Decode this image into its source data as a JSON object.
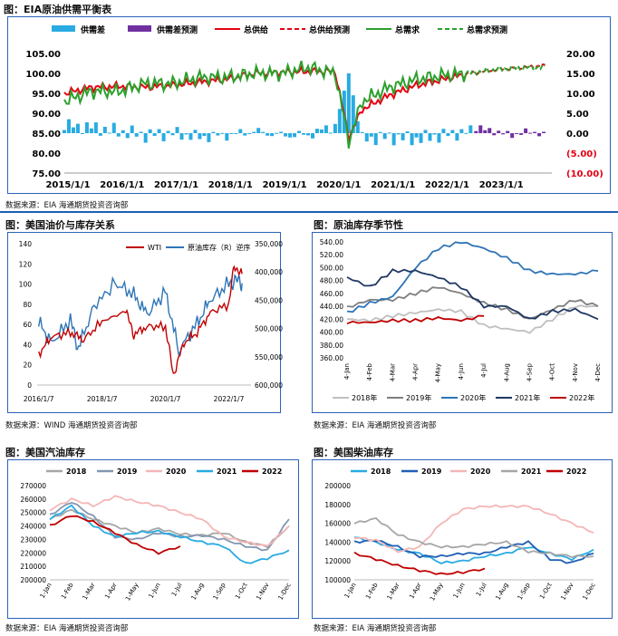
{
  "panel1": {
    "title": "图：EIA原油供需平衡表",
    "source": "数据来源：EIA   海通期货投资咨询部",
    "legend": [
      "供需差",
      "供需差预测",
      "总供给",
      "总供给预测",
      "总需求",
      "总需求预测"
    ],
    "colors": {
      "gap": "#29abe2",
      "gap_forecast": "#7030a0",
      "supply": "#e60012",
      "demand": "#2ca02c"
    },
    "left_axis_ticks": [
      "105.00",
      "100.00",
      "95.00",
      "90.00",
      "85.00",
      "80.00",
      "75.00"
    ],
    "right_axis_ticks": [
      "20.00",
      "15.00",
      "10.00",
      "5.00",
      "0.00",
      "(5.00)",
      "(10.00)"
    ],
    "x_ticks": [
      "2015/1/1",
      "2016/1/1",
      "2017/1/1",
      "2018/1/1",
      "2019/1/1",
      "2020/1/1",
      "2021/1/1",
      "2022/1/1",
      "2023/1/1"
    ]
  },
  "panel2": {
    "title": "图：美国油价与库存关系",
    "source": "数据来源：WIND   海通期货投资咨询部",
    "legend": [
      "WTI",
      "原油库存（R）逆序"
    ],
    "colors": {
      "wti": "#c00000",
      "stock": "#2e75b6"
    },
    "left_ticks": [
      "140",
      "120",
      "100",
      "80",
      "60",
      "40",
      "20",
      "0"
    ],
    "right_ticks": [
      "350,000",
      "400,000",
      "450,000",
      "500,000",
      "550,000",
      "600,000"
    ],
    "x_ticks": [
      "2016/1/7",
      "2018/1/7",
      "2020/1/7",
      "2022/1/7"
    ]
  },
  "panel3": {
    "title": "图：原油库存季节性",
    "source": "数据来源：EIA   海通期货投资咨询部",
    "y_ticks": [
      "540.00",
      "520.00",
      "500.00",
      "480.00",
      "460.00",
      "440.00",
      "420.00",
      "400.00",
      "380.00",
      "360.00"
    ],
    "x_ticks": [
      "4-Jan",
      "4-Feb",
      "4-Mar",
      "4-Apr",
      "4-May",
      "4-Jun",
      "4-Jul",
      "4-Aug",
      "4-Sep",
      "4-Oct",
      "4-Nov",
      "4-Dec"
    ],
    "legend": [
      "2018年",
      "2019年",
      "2020年",
      "2021年",
      "2022年"
    ],
    "colors": [
      "#bfbfbf",
      "#7f7f7f",
      "#2e75b6",
      "#1f3864",
      "#c00000"
    ]
  },
  "panel4": {
    "title": "图：美国汽油库存",
    "source": "数据来源：EIA   海通期货投资咨询部",
    "legend": [
      "2018",
      "2019",
      "2020",
      "2021",
      "2022"
    ],
    "colors": [
      "#a6a6a6",
      "#8497b0",
      "#f4b6b6",
      "#29abe2",
      "#c00000"
    ],
    "y_ticks": [
      "270000",
      "260000",
      "250000",
      "240000",
      "230000",
      "220000",
      "210000",
      "200000"
    ],
    "x_ticks": [
      "1-Jan",
      "1-Feb",
      "1-Mar",
      "1-Apr",
      "1-May",
      "1-Jun",
      "1-Jul",
      "1-Aug",
      "1-Sep",
      "1-Oct",
      "1-Nov",
      "1-Dec"
    ]
  },
  "panel5": {
    "title": "图：美国柴油库存",
    "source": "数据来源：EIA   海通期货投资咨询部",
    "legend": [
      "2018",
      "2019",
      "2020",
      "2021",
      "2022"
    ],
    "colors": [
      "#29abe2",
      "#1f5fb4",
      "#f4b6b6",
      "#a6a6a6",
      "#c00000"
    ],
    "y_ticks": [
      "200000",
      "180000",
      "160000",
      "140000",
      "120000",
      "100000"
    ],
    "x_ticks": [
      "1-Jan",
      "1-Feb",
      "1-Mar",
      "1-Apr",
      "1-May",
      "1-Jun",
      "1-Jul",
      "1-Aug",
      "1-Sep",
      "1-Oct",
      "1-Nov",
      "1-Dec"
    ]
  },
  "chart_data": [
    {
      "type": "line",
      "title": "图：EIA原油供需平衡表",
      "ylim": [
        75,
        105
      ],
      "y2lim": [
        -10,
        20
      ],
      "series": [
        {
          "name": "总供给",
          "x": [
            "2015-01",
            "2015-07",
            "2016-01",
            "2016-07",
            "2017-01",
            "2017-07",
            "2018-01",
            "2018-07",
            "2019-01",
            "2019-07",
            "2020-01",
            "2020-04",
            "2020-07",
            "2021-01",
            "2021-07",
            "2022-01",
            "2022-07"
          ],
          "values": [
            95.0,
            96.5,
            96.8,
            96.5,
            97.0,
            97.8,
            98.5,
            100.0,
            100.3,
            100.5,
            100.5,
            84.0,
            91.0,
            94.5,
            97.0,
            98.5,
            100.0
          ]
        },
        {
          "name": "总供给预测",
          "x": [
            "2022-07",
            "2023-01",
            "2023-07",
            "2023-12"
          ],
          "values": [
            100.0,
            101.0,
            101.5,
            102.0
          ]
        },
        {
          "name": "总需求",
          "x": [
            "2015-01",
            "2015-07",
            "2016-01",
            "2016-07",
            "2017-01",
            "2017-07",
            "2018-01",
            "2018-07",
            "2019-01",
            "2019-07",
            "2020-01",
            "2020-04",
            "2020-07",
            "2021-01",
            "2021-07",
            "2022-01",
            "2022-07"
          ],
          "values": [
            93.0,
            95.5,
            95.5,
            97.5,
            97.5,
            99.0,
            99.0,
            100.0,
            100.0,
            101.5,
            100.0,
            83.0,
            93.0,
            96.5,
            98.5,
            99.5,
            100.0
          ]
        },
        {
          "name": "总需求预测",
          "x": [
            "2022-07",
            "2023-01",
            "2023-07",
            "2023-12"
          ],
          "values": [
            100.0,
            101.0,
            101.5,
            101.5
          ]
        },
        {
          "name": "供需差",
          "axis": "right",
          "x": [
            "2015-01",
            "2015-07",
            "2016-01",
            "2016-07",
            "2017-01",
            "2017-07",
            "2018-01",
            "2018-07",
            "2019-01",
            "2019-07",
            "2020-01",
            "2020-04",
            "2020-07",
            "2021-01",
            "2021-07",
            "2022-01",
            "2022-07"
          ],
          "values": [
            2.0,
            1.5,
            0.5,
            -0.5,
            0.0,
            -1.0,
            -0.5,
            0.5,
            -0.5,
            -0.5,
            2.0,
            15.0,
            -1.5,
            -1.0,
            -1.5,
            -0.5,
            0.5
          ]
        },
        {
          "name": "供需差预测",
          "axis": "right",
          "x": [
            "2022-08",
            "2022-12",
            "2023-04",
            "2023-08",
            "2023-12"
          ],
          "values": [
            1.5,
            0.5,
            -0.5,
            0.5,
            -0.5
          ]
        }
      ]
    },
    {
      "type": "line",
      "title": "图：美国油价与库存关系",
      "ylim": [
        0,
        140
      ],
      "y2lim": [
        600000,
        350000
      ],
      "series": [
        {
          "name": "WTI",
          "x": [
            "2016-01",
            "2016-06",
            "2017-01",
            "2017-06",
            "2018-01",
            "2018-10",
            "2019-01",
            "2019-06",
            "2020-01",
            "2020-04",
            "2020-08",
            "2021-01",
            "2021-06",
            "2022-01",
            "2022-03",
            "2022-06"
          ],
          "values": [
            31,
            48,
            52,
            45,
            63,
            73,
            50,
            58,
            58,
            10,
            42,
            52,
            72,
            80,
            118,
            110
          ]
        },
        {
          "name": "原油库存（R）逆序",
          "axis": "right",
          "x": [
            "2016-01",
            "2016-06",
            "2017-01",
            "2017-04",
            "2017-10",
            "2018-06",
            "2019-01",
            "2019-06",
            "2020-01",
            "2020-06",
            "2021-01",
            "2021-06",
            "2022-01",
            "2022-04",
            "2022-06"
          ],
          "values": [
            490000,
            525000,
            485000,
            535000,
            460000,
            420000,
            440000,
            475000,
            435000,
            540000,
            490000,
            450000,
            420000,
            415000,
            420000
          ]
        }
      ]
    },
    {
      "type": "line",
      "title": "图：原油库存季节性",
      "ylim": [
        360,
        540
      ],
      "categories": [
        "4-Jan",
        "4-Feb",
        "4-Mar",
        "4-Apr",
        "4-May",
        "4-Jun",
        "4-Jul",
        "4-Aug",
        "4-Sep",
        "4-Oct",
        "4-Nov",
        "4-Dec"
      ],
      "series": [
        {
          "name": "2018年",
          "values": [
            420,
            418,
            425,
            430,
            435,
            432,
            410,
            405,
            400,
            420,
            440,
            440
          ]
        },
        {
          "name": "2019年",
          "values": [
            438,
            450,
            450,
            460,
            470,
            460,
            445,
            435,
            420,
            435,
            450,
            440
          ]
        },
        {
          "name": "2020年",
          "values": [
            430,
            445,
            455,
            500,
            530,
            540,
            530,
            515,
            495,
            490,
            490,
            495
          ]
        },
        {
          "name": "2021年",
          "values": [
            485,
            470,
            495,
            495,
            485,
            470,
            440,
            440,
            420,
            432,
            435,
            420
          ]
        },
        {
          "name": "2022年",
          "values": [
            415,
            415,
            418,
            418,
            422,
            418,
            425,
            null,
            null,
            null,
            null,
            null
          ]
        }
      ]
    },
    {
      "type": "line",
      "title": "图：美国汽油库存",
      "ylim": [
        200000,
        270000
      ],
      "categories": [
        "1-Jan",
        "1-Feb",
        "1-Mar",
        "1-Apr",
        "1-May",
        "1-Jun",
        "1-Jul",
        "1-Aug",
        "1-Sep",
        "1-Oct",
        "1-Nov",
        "1-Dec"
      ],
      "series": [
        {
          "name": "2018",
          "values": [
            245000,
            252000,
            245000,
            240000,
            235000,
            238000,
            234000,
            233000,
            235000,
            228000,
            225000,
            240000
          ]
        },
        {
          "name": "2019",
          "values": [
            248000,
            258000,
            247000,
            232000,
            230000,
            235000,
            232000,
            233000,
            230000,
            225000,
            222000,
            245000
          ]
        },
        {
          "name": "2020",
          "values": [
            252000,
            260000,
            255000,
            262000,
            258000,
            255000,
            250000,
            245000,
            232000,
            228000,
            225000,
            240000
          ]
        },
        {
          "name": "2021",
          "values": [
            245000,
            255000,
            240000,
            232000,
            235000,
            236000,
            232000,
            228000,
            225000,
            212000,
            216000,
            222000
          ]
        },
        {
          "name": "2022",
          "values": [
            240000,
            248000,
            243000,
            235000,
            226000,
            220000,
            225000,
            null,
            null,
            null,
            null,
            null
          ]
        }
      ]
    },
    {
      "type": "line",
      "title": "图：美国柴油库存",
      "ylim": [
        100000,
        200000
      ],
      "categories": [
        "1-Jan",
        "1-Feb",
        "1-Mar",
        "1-Apr",
        "1-May",
        "1-Jun",
        "1-Jul",
        "1-Aug",
        "1-Sep",
        "1-Oct",
        "1-Nov",
        "1-Dec"
      ],
      "series": [
        {
          "name": "2018",
          "values": [
            145000,
            140000,
            132000,
            128000,
            118000,
            120000,
            125000,
            128000,
            135000,
            128000,
            122000,
            132000
          ]
        },
        {
          "name": "2019",
          "values": [
            140000,
            142000,
            135000,
            125000,
            125000,
            128000,
            128000,
            135000,
            140000,
            122000,
            118000,
            128000
          ]
        },
        {
          "name": "2020",
          "values": [
            145000,
            142000,
            130000,
            135000,
            160000,
            175000,
            178000,
            178000,
            178000,
            170000,
            160000,
            150000
          ]
        },
        {
          "name": "2021",
          "values": [
            160000,
            165000,
            148000,
            140000,
            135000,
            135000,
            138000,
            140000,
            130000,
            128000,
            125000,
            125000
          ]
        },
        {
          "name": "2022",
          "values": [
            128000,
            122000,
            115000,
            110000,
            106000,
            108000,
            112000,
            null,
            null,
            null,
            null,
            null
          ]
        }
      ]
    }
  ]
}
